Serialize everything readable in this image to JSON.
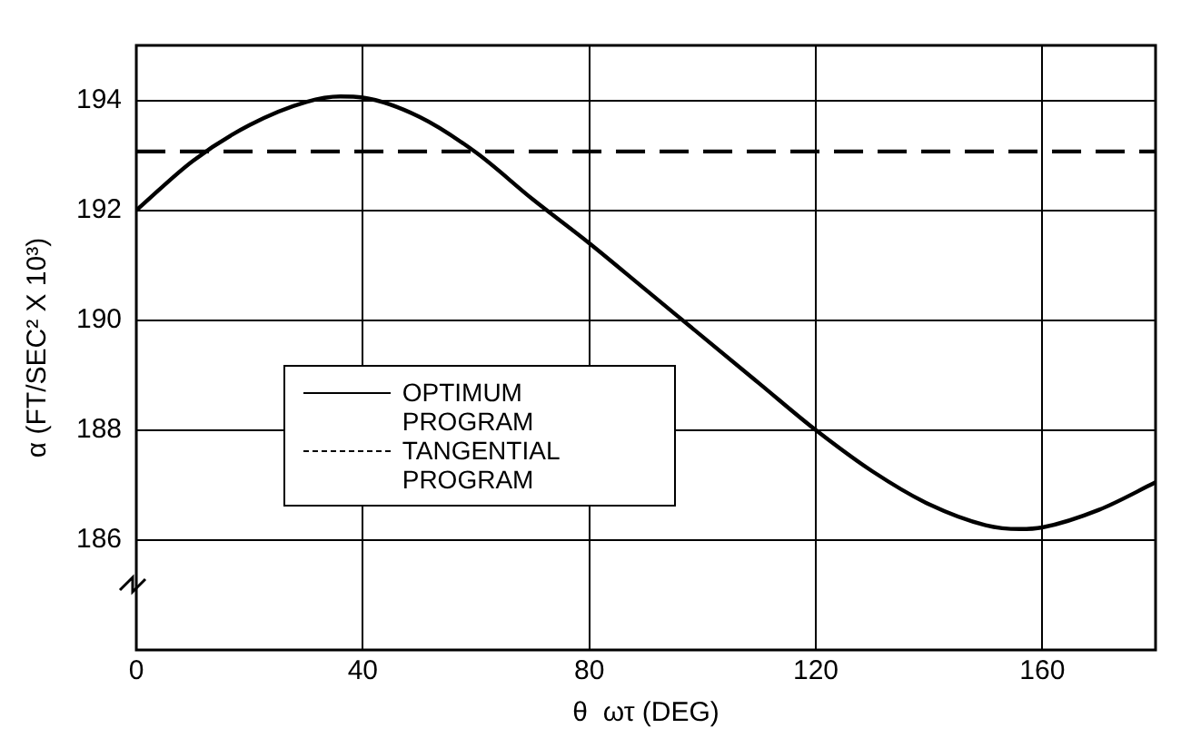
{
  "chart_data": {
    "type": "line",
    "xlabel": "θ  ωτ (DEG)",
    "ylabel": "α (FT/SEC² X 10³)",
    "xlim": [
      0,
      180
    ],
    "xticks": [
      0,
      40,
      80,
      120,
      160
    ],
    "ylim": [
      184,
      195
    ],
    "yticks": [
      186,
      188,
      190,
      192,
      194
    ],
    "grid": true,
    "legend": "left",
    "marker": "none",
    "series": [
      {
        "name": "OPTIMUM PROGRAM",
        "color": "#000000",
        "line_style": "solid",
        "x": [
          0,
          10,
          20,
          30,
          36,
          40,
          50,
          60,
          70,
          80,
          90,
          100,
          110,
          120,
          130,
          140,
          150,
          156,
          160,
          170,
          180
        ],
        "values": [
          192.0,
          192.9,
          193.55,
          193.97,
          194.07,
          194.05,
          193.7,
          193.05,
          192.2,
          191.4,
          190.55,
          189.7,
          188.85,
          188.0,
          187.25,
          186.65,
          186.27,
          186.2,
          186.23,
          186.55,
          187.05
        ]
      },
      {
        "name": "TANGENTIAL PROGRAM",
        "color": "#000000",
        "line_style": "dashed",
        "x": [
          0,
          180
        ],
        "values": [
          193.07,
          193.07
        ]
      }
    ]
  }
}
